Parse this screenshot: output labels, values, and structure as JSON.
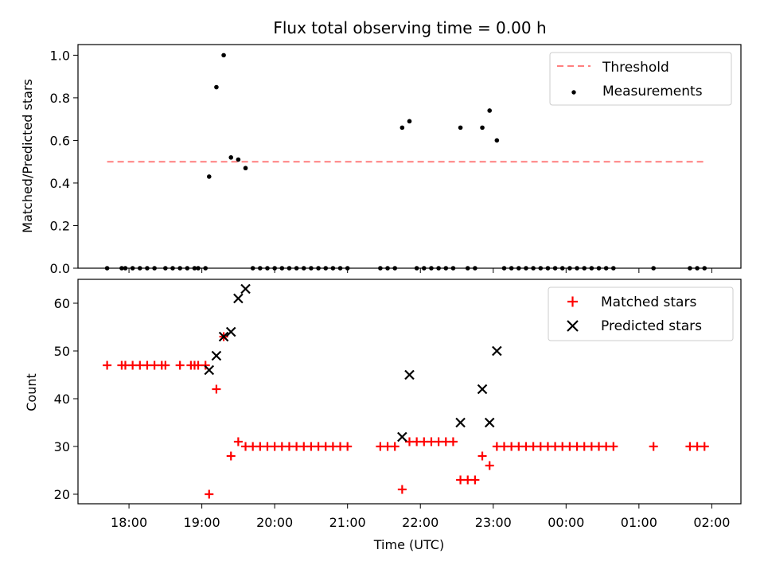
{
  "chart_data": [
    {
      "type": "scatter",
      "title": "Flux total observing time = 0.00 h",
      "ylabel": "Matched/Predicted stars",
      "xlabel": "",
      "ylim": [
        0.0,
        1.05
      ],
      "yticks": [
        "0.0",
        "0.2",
        "0.4",
        "0.6",
        "0.8",
        "1.0"
      ],
      "legend_position": "top-right",
      "threshold": {
        "name": "Threshold",
        "value": 0.5,
        "x_range": [
          "17:42",
          "01:54"
        ],
        "color": "#ff7f7f",
        "style": "dashed"
      },
      "series": [
        {
          "name": "Measurements",
          "marker": "dot",
          "color": "#000000",
          "points": [
            {
              "t": "17:42",
              "y": 0
            },
            {
              "t": "17:54",
              "y": 0
            },
            {
              "t": "17:57",
              "y": 0
            },
            {
              "t": "18:03",
              "y": 0
            },
            {
              "t": "18:09",
              "y": 0
            },
            {
              "t": "18:15",
              "y": 0
            },
            {
              "t": "18:21",
              "y": 0
            },
            {
              "t": "18:30",
              "y": 0
            },
            {
              "t": "18:36",
              "y": 0
            },
            {
              "t": "18:42",
              "y": 0
            },
            {
              "t": "18:54",
              "y": 0
            },
            {
              "t": "19:03",
              "y": 0
            },
            {
              "t": "18:48",
              "y": 0
            },
            {
              "t": "18:57",
              "y": 0
            },
            {
              "t": "19:06",
              "y": 0.43
            },
            {
              "t": "19:12",
              "y": 0.85
            },
            {
              "t": "19:18",
              "y": 1.0
            },
            {
              "t": "19:24",
              "y": 0.52
            },
            {
              "t": "19:30",
              "y": 0.51
            },
            {
              "t": "19:36",
              "y": 0.47
            },
            {
              "t": "19:42",
              "y": 0
            },
            {
              "t": "19:48",
              "y": 0
            },
            {
              "t": "19:54",
              "y": 0
            },
            {
              "t": "20:00",
              "y": 0
            },
            {
              "t": "20:06",
              "y": 0
            },
            {
              "t": "20:12",
              "y": 0
            },
            {
              "t": "20:18",
              "y": 0
            },
            {
              "t": "20:24",
              "y": 0
            },
            {
              "t": "20:30",
              "y": 0
            },
            {
              "t": "20:36",
              "y": 0
            },
            {
              "t": "20:42",
              "y": 0
            },
            {
              "t": "20:48",
              "y": 0
            },
            {
              "t": "20:54",
              "y": 0
            },
            {
              "t": "21:00",
              "y": 0
            },
            {
              "t": "21:27",
              "y": 0
            },
            {
              "t": "21:33",
              "y": 0
            },
            {
              "t": "21:39",
              "y": 0
            },
            {
              "t": "21:45",
              "y": 0.66
            },
            {
              "t": "21:51",
              "y": 0.69
            },
            {
              "t": "21:57",
              "y": 0
            },
            {
              "t": "22:03",
              "y": 0
            },
            {
              "t": "22:09",
              "y": 0
            },
            {
              "t": "22:15",
              "y": 0
            },
            {
              "t": "22:21",
              "y": 0
            },
            {
              "t": "22:27",
              "y": 0
            },
            {
              "t": "22:33",
              "y": 0.66
            },
            {
              "t": "22:39",
              "y": 0
            },
            {
              "t": "22:45",
              "y": 0
            },
            {
              "t": "22:51",
              "y": 0.66
            },
            {
              "t": "22:57",
              "y": 0.74
            },
            {
              "t": "23:03",
              "y": 0.6
            },
            {
              "t": "23:09",
              "y": 0
            },
            {
              "t": "23:15",
              "y": 0
            },
            {
              "t": "23:21",
              "y": 0
            },
            {
              "t": "23:27",
              "y": 0
            },
            {
              "t": "23:33",
              "y": 0
            },
            {
              "t": "23:39",
              "y": 0
            },
            {
              "t": "23:45",
              "y": 0
            },
            {
              "t": "23:51",
              "y": 0
            },
            {
              "t": "23:57",
              "y": 0
            },
            {
              "t": "00:03",
              "y": 0
            },
            {
              "t": "00:09",
              "y": 0
            },
            {
              "t": "00:15",
              "y": 0
            },
            {
              "t": "00:21",
              "y": 0
            },
            {
              "t": "00:27",
              "y": 0
            },
            {
              "t": "00:33",
              "y": 0
            },
            {
              "t": "00:39",
              "y": 0
            },
            {
              "t": "01:12",
              "y": 0
            },
            {
              "t": "01:42",
              "y": 0
            },
            {
              "t": "01:48",
              "y": 0
            },
            {
              "t": "01:54",
              "y": 0
            }
          ]
        }
      ]
    },
    {
      "type": "scatter",
      "title": "",
      "ylabel": "Count",
      "xlabel": "Time (UTC)",
      "ylim": [
        18,
        65
      ],
      "yticks": [
        "20",
        "30",
        "40",
        "50",
        "60"
      ],
      "xlim": [
        "17:18",
        "02:24"
      ],
      "xticks": [
        "18:00",
        "19:00",
        "20:00",
        "21:00",
        "22:00",
        "23:00",
        "00:00",
        "01:00",
        "02:00"
      ],
      "legend_position": "top-right",
      "series": [
        {
          "name": "Matched stars",
          "marker": "plus",
          "color": "#ff0000",
          "points": [
            {
              "t": "17:42",
              "y": 47
            },
            {
              "t": "17:54",
              "y": 47
            },
            {
              "t": "17:57",
              "y": 47
            },
            {
              "t": "18:03",
              "y": 47
            },
            {
              "t": "18:09",
              "y": 47
            },
            {
              "t": "18:15",
              "y": 47
            },
            {
              "t": "18:21",
              "y": 47
            },
            {
              "t": "18:27",
              "y": 47
            },
            {
              "t": "18:30",
              "y": 47
            },
            {
              "t": "18:42",
              "y": 47
            },
            {
              "t": "18:51",
              "y": 47
            },
            {
              "t": "18:54",
              "y": 47
            },
            {
              "t": "18:57",
              "y": 47
            },
            {
              "t": "19:03",
              "y": 47
            },
            {
              "t": "19:06",
              "y": 20
            },
            {
              "t": "19:12",
              "y": 42
            },
            {
              "t": "19:18",
              "y": 53
            },
            {
              "t": "19:24",
              "y": 28
            },
            {
              "t": "19:30",
              "y": 31
            },
            {
              "t": "19:36",
              "y": 30
            },
            {
              "t": "19:42",
              "y": 30
            },
            {
              "t": "19:48",
              "y": 30
            },
            {
              "t": "19:54",
              "y": 30
            },
            {
              "t": "20:00",
              "y": 30
            },
            {
              "t": "20:06",
              "y": 30
            },
            {
              "t": "20:12",
              "y": 30
            },
            {
              "t": "20:18",
              "y": 30
            },
            {
              "t": "20:24",
              "y": 30
            },
            {
              "t": "20:30",
              "y": 30
            },
            {
              "t": "20:36",
              "y": 30
            },
            {
              "t": "20:42",
              "y": 30
            },
            {
              "t": "20:48",
              "y": 30
            },
            {
              "t": "20:54",
              "y": 30
            },
            {
              "t": "21:00",
              "y": 30
            },
            {
              "t": "21:27",
              "y": 30
            },
            {
              "t": "21:33",
              "y": 30
            },
            {
              "t": "21:39",
              "y": 30
            },
            {
              "t": "21:45",
              "y": 21
            },
            {
              "t": "21:51",
              "y": 31
            },
            {
              "t": "21:57",
              "y": 31
            },
            {
              "t": "22:03",
              "y": 31
            },
            {
              "t": "22:09",
              "y": 31
            },
            {
              "t": "22:15",
              "y": 31
            },
            {
              "t": "22:21",
              "y": 31
            },
            {
              "t": "22:27",
              "y": 31
            },
            {
              "t": "22:33",
              "y": 23
            },
            {
              "t": "22:39",
              "y": 23
            },
            {
              "t": "22:45",
              "y": 23
            },
            {
              "t": "22:51",
              "y": 28
            },
            {
              "t": "22:57",
              "y": 26
            },
            {
              "t": "23:03",
              "y": 30
            },
            {
              "t": "23:09",
              "y": 30
            },
            {
              "t": "23:15",
              "y": 30
            },
            {
              "t": "23:21",
              "y": 30
            },
            {
              "t": "23:27",
              "y": 30
            },
            {
              "t": "23:33",
              "y": 30
            },
            {
              "t": "23:39",
              "y": 30
            },
            {
              "t": "23:45",
              "y": 30
            },
            {
              "t": "23:51",
              "y": 30
            },
            {
              "t": "23:57",
              "y": 30
            },
            {
              "t": "00:03",
              "y": 30
            },
            {
              "t": "00:09",
              "y": 30
            },
            {
              "t": "00:15",
              "y": 30
            },
            {
              "t": "00:21",
              "y": 30
            },
            {
              "t": "00:27",
              "y": 30
            },
            {
              "t": "00:33",
              "y": 30
            },
            {
              "t": "00:39",
              "y": 30
            },
            {
              "t": "01:12",
              "y": 30
            },
            {
              "t": "01:42",
              "y": 30
            },
            {
              "t": "01:48",
              "y": 30
            },
            {
              "t": "01:54",
              "y": 30
            }
          ]
        },
        {
          "name": "Predicted stars",
          "marker": "x",
          "color": "#000000",
          "points": [
            {
              "t": "19:06",
              "y": 46
            },
            {
              "t": "19:12",
              "y": 49
            },
            {
              "t": "19:18",
              "y": 53
            },
            {
              "t": "19:24",
              "y": 54
            },
            {
              "t": "19:30",
              "y": 61
            },
            {
              "t": "19:36",
              "y": 63
            },
            {
              "t": "21:45",
              "y": 32
            },
            {
              "t": "21:51",
              "y": 45
            },
            {
              "t": "22:33",
              "y": 35
            },
            {
              "t": "22:51",
              "y": 42
            },
            {
              "t": "22:57",
              "y": 35
            },
            {
              "t": "23:03",
              "y": 50
            }
          ]
        }
      ]
    }
  ]
}
